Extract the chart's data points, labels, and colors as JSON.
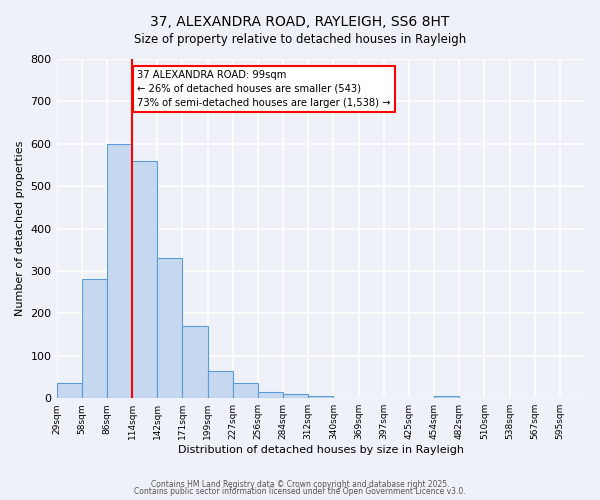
{
  "title": "37, ALEXANDRA ROAD, RAYLEIGH, SS6 8HT",
  "subtitle": "Size of property relative to detached houses in Rayleigh",
  "xlabel": "Distribution of detached houses by size in Rayleigh",
  "ylabel": "Number of detached properties",
  "bar_values": [
    35,
    280,
    600,
    560,
    330,
    170,
    65,
    35,
    15,
    10,
    5,
    0,
    0,
    0,
    0,
    5,
    0,
    0,
    0,
    0,
    0
  ],
  "bin_labels": [
    "29sqm",
    "58sqm",
    "86sqm",
    "114sqm",
    "142sqm",
    "171sqm",
    "199sqm",
    "227sqm",
    "256sqm",
    "284sqm",
    "312sqm",
    "340sqm",
    "369sqm",
    "397sqm",
    "425sqm",
    "454sqm",
    "482sqm",
    "510sqm",
    "538sqm",
    "567sqm",
    "595sqm"
  ],
  "bar_color": "#c5d8f0",
  "bar_edge_color": "#5b9bd5",
  "vline_x": 3,
  "vline_color": "red",
  "ylim": [
    0,
    800
  ],
  "yticks": [
    0,
    100,
    200,
    300,
    400,
    500,
    600,
    700,
    800
  ],
  "annotation_title": "37 ALEXANDRA ROAD: 99sqm",
  "annotation_line1": "← 26% of detached houses are smaller (543)",
  "annotation_line2": "73% of semi-detached houses are larger (1,538) →",
  "annotation_box_color": "white",
  "annotation_box_edge": "red",
  "footer1": "Contains HM Land Registry data © Crown copyright and database right 2025.",
  "footer2": "Contains public sector information licensed under the Open Government Licence v3.0.",
  "background_color": "#eef2f8",
  "grid_color": "white"
}
